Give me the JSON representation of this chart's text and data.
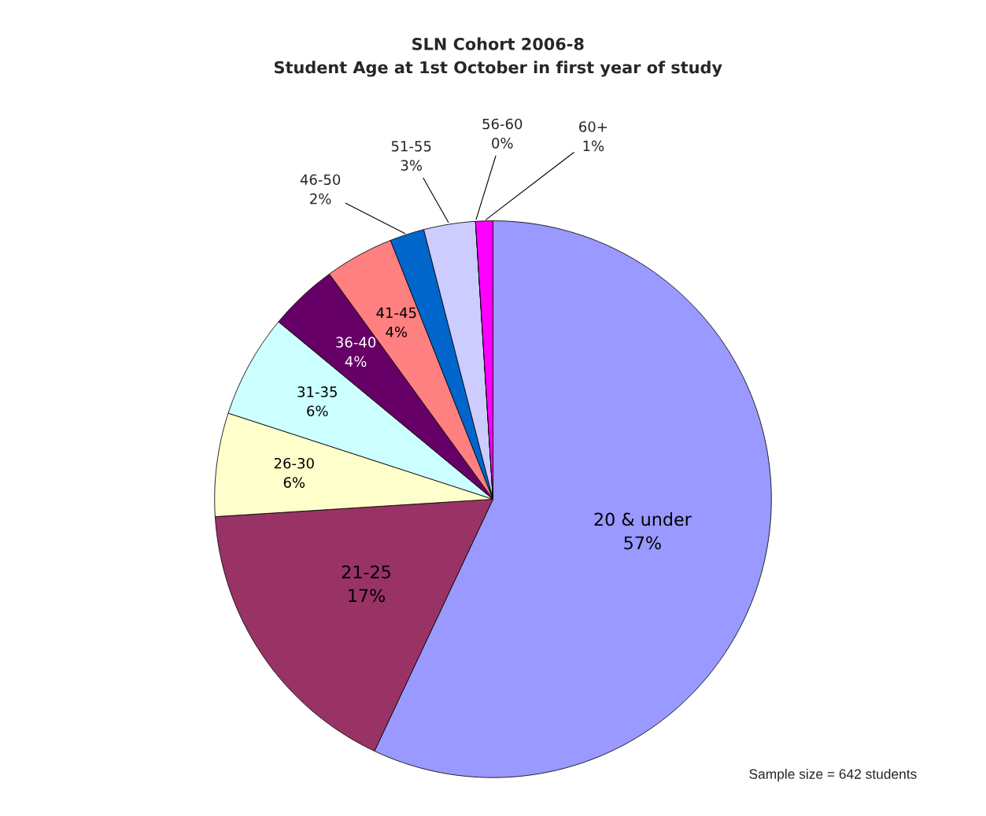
{
  "chart_data": {
    "type": "pie",
    "title": "SLN Cohort 2006-8\nStudent Age at 1st October in first year of study",
    "categories": [
      "20 & under",
      "21-25",
      "26-30",
      "31-35",
      "36-40",
      "41-45",
      "46-50",
      "51-55",
      "56-60",
      "60+"
    ],
    "values": [
      57,
      17,
      6,
      6,
      4,
      4,
      2,
      3,
      0,
      1
    ],
    "value_labels": [
      "57%",
      "17%",
      "6%",
      "6%",
      "4%",
      "4%",
      "2%",
      "3%",
      "0%",
      "1%"
    ],
    "colors": [
      "#9999ff",
      "#993366",
      "#ffffcc",
      "#ccffff",
      "#660066",
      "#ff8080",
      "#0066cc",
      "#ccccff",
      "#000080",
      "#ff00ff"
    ],
    "annotations": [
      "Sample size = 642 students"
    ]
  }
}
